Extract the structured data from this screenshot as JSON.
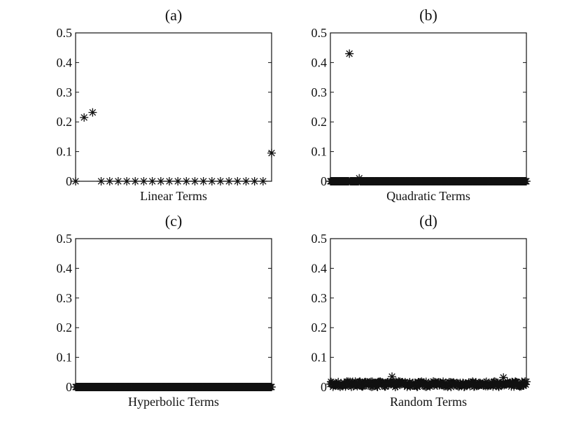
{
  "chart_data": [
    {
      "type": "scatter",
      "title": "(a)",
      "xlabel": "Linear Terms",
      "ylabel": "",
      "ylim": [
        0,
        0.5
      ],
      "yticks": [
        "0",
        "0.1",
        "0.2",
        "0.3",
        "0.4",
        "0.5"
      ],
      "marker": "star",
      "x": [
        1,
        2,
        3,
        4,
        5,
        6,
        7,
        8,
        9,
        10,
        11,
        12,
        13,
        14,
        15,
        16,
        17,
        18,
        19,
        20,
        21,
        22,
        23,
        24
      ],
      "y": [
        0,
        0.215,
        0.232,
        0,
        0,
        0,
        0,
        0,
        0,
        0,
        0,
        0,
        0,
        0,
        0,
        0,
        0,
        0,
        0,
        0,
        0,
        0,
        0,
        0.095
      ]
    },
    {
      "type": "scatter",
      "title": "(b)",
      "xlabel": "Quadratic Terms",
      "ylabel": "",
      "ylim": [
        0,
        0.5
      ],
      "yticks": [
        "0",
        "0.1",
        "0.2",
        "0.3",
        "0.4",
        "0.5"
      ],
      "marker": "star",
      "n_points": 300,
      "baseline": 0,
      "highlights": [
        {
          "x": 30,
          "y": 0.43
        },
        {
          "x": 45,
          "y": 0.01
        }
      ]
    },
    {
      "type": "scatter",
      "title": "(c)",
      "xlabel": "Hyperbolic Terms",
      "ylabel": "",
      "ylim": [
        0,
        0.5
      ],
      "yticks": [
        "0",
        "0.1",
        "0.2",
        "0.3",
        "0.4",
        "0.5"
      ],
      "marker": "star",
      "n_points": 300,
      "baseline": 0
    },
    {
      "type": "scatter",
      "title": "(d)",
      "xlabel": "Random Terms",
      "ylabel": "",
      "ylim": [
        0,
        0.5
      ],
      "yticks": [
        "0",
        "0.1",
        "0.2",
        "0.3",
        "0.4",
        "0.5"
      ],
      "marker": "star",
      "n_points": 300,
      "noise_max": 0.025,
      "highlights": [
        {
          "x": 95,
          "y": 0.035
        },
        {
          "x": 265,
          "y": 0.032
        }
      ]
    }
  ]
}
